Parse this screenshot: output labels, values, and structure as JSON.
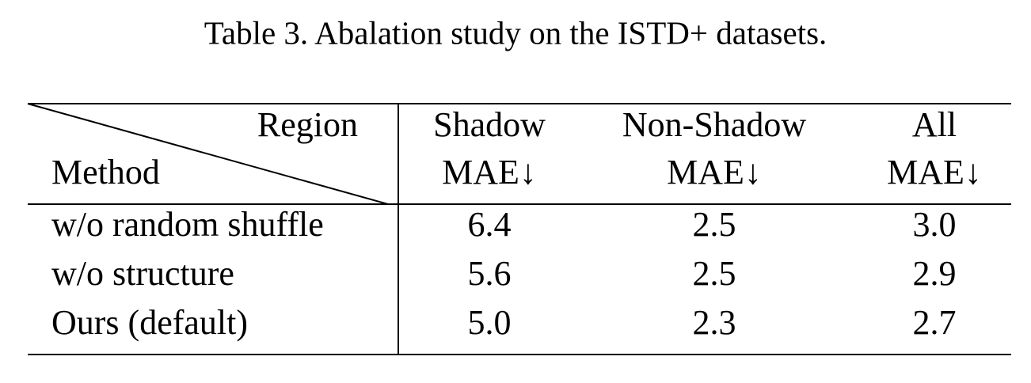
{
  "caption": "Table 3. Abalation study on the ISTD+ datasets.",
  "table": {
    "corner": {
      "column_label": "Region",
      "row_label": "Method"
    },
    "columns": [
      {
        "title": "Shadow",
        "metric": "MAE↓"
      },
      {
        "title": "Non-Shadow",
        "metric": "MAE↓"
      },
      {
        "title": "All",
        "metric": "MAE↓"
      }
    ],
    "rows": [
      [
        "w/o random shuffle",
        "6.4",
        "2.5",
        "3.0"
      ],
      [
        "w/o structure",
        "5.6",
        "2.5",
        "2.9"
      ],
      [
        "Ours (default)",
        "5.0",
        "2.3",
        "2.7"
      ]
    ]
  }
}
